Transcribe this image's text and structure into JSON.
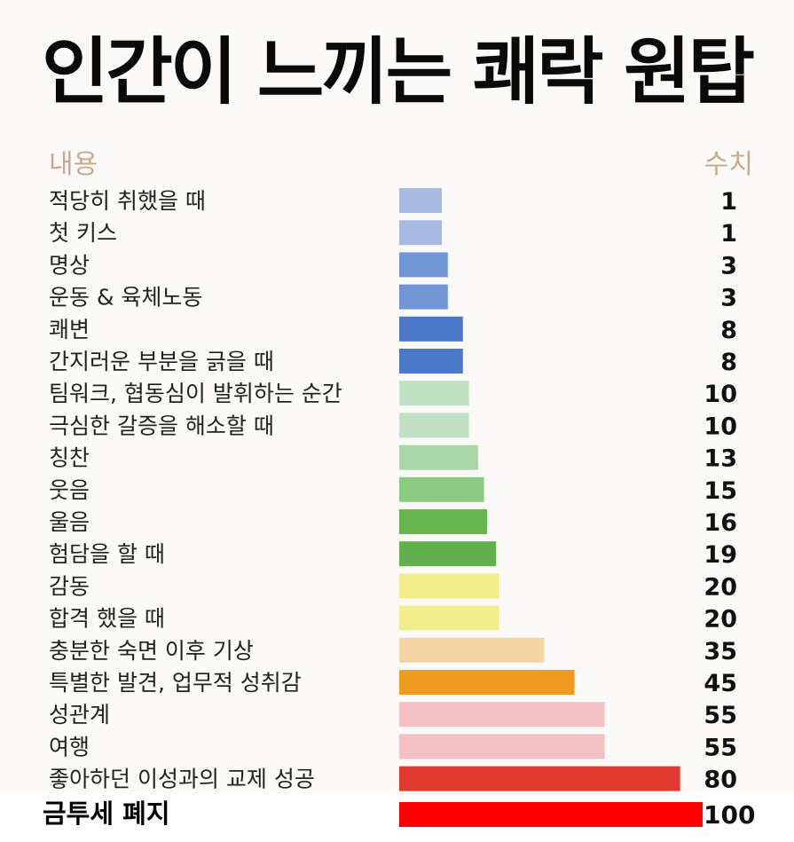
{
  "title": "인간이 느끼는 쾌락 원탑",
  "header": {
    "left": "내용",
    "right": "수치"
  },
  "chart_data": {
    "type": "bar",
    "orientation": "horizontal",
    "categories": [
      "적당히 취했을 때",
      "첫 키스",
      "명상",
      "운동 & 육체노동",
      "쾌변",
      "간지러운 부분을 긁을 때",
      "팀워크, 협동심이 발휘하는 순간",
      "극심한 갈증을 해소할 때",
      "칭찬",
      "웃음",
      "울음",
      "험담을 할 때",
      "감동",
      "합격 했을 때",
      "충분한 숙면 이후 기상",
      "특별한 발견, 업무적 성취감",
      "성관계",
      "여행",
      "좋아하던 이성과의 교제 성공",
      "금투세 폐지"
    ],
    "values": [
      1,
      1,
      3,
      3,
      8,
      8,
      10,
      10,
      13,
      15,
      16,
      19,
      20,
      20,
      35,
      45,
      55,
      55,
      80,
      100
    ],
    "colors": [
      "#a9b9e2",
      "#a9b9e2",
      "#7295d6",
      "#7295d6",
      "#4a78c8",
      "#4a78c8",
      "#bfe0c3",
      "#bfe0c3",
      "#a8d6a8",
      "#8cca84",
      "#66b54f",
      "#62b14e",
      "#f3ee8c",
      "#f3ee8c",
      "#f5d5a3",
      "#ee9b1f",
      "#f3c0c4",
      "#f3c0c4",
      "#e03a2e",
      "#ff0000"
    ],
    "value_labels": [
      "1",
      "1",
      "3",
      "3",
      "8",
      "8",
      "10",
      "10",
      "13",
      "15",
      "16",
      "19",
      "20",
      "20",
      "35",
      "45",
      "55",
      "55",
      "80",
      "100"
    ]
  }
}
